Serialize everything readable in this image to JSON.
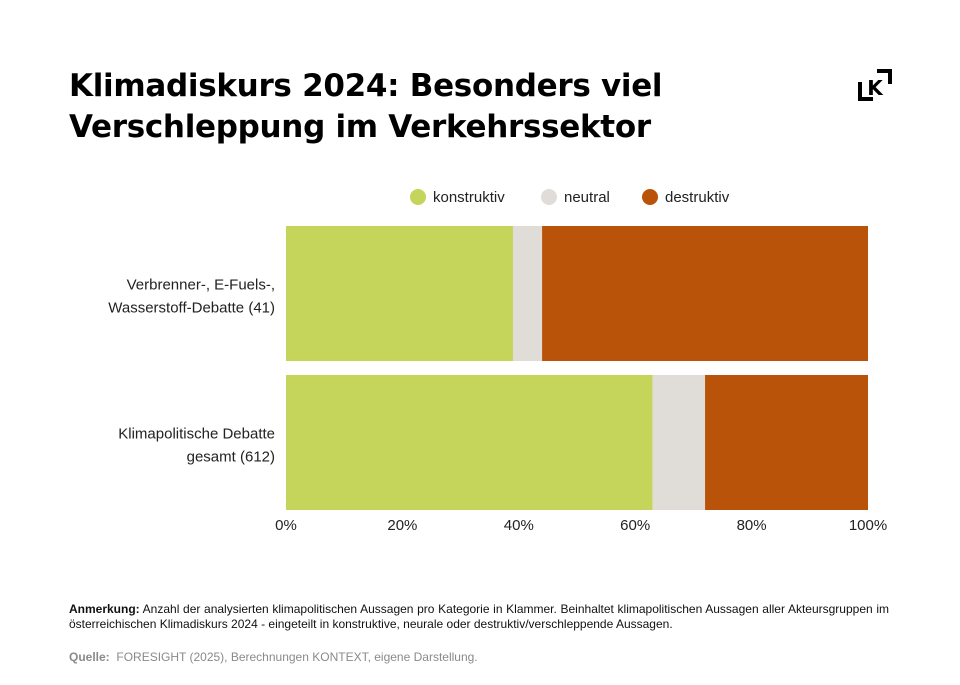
{
  "title_line1": "Klimadiskurs 2024: Besonders viel",
  "title_line2": "Verschleppung im Verkehrssektor",
  "logo_icon": "kontext-k-logo",
  "chart_data": {
    "type": "bar",
    "orientation": "horizontal-stacked-100",
    "categories": [
      [
        "Verbrenner-, E-Fuels-,",
        "Wasserstoff-Debatte (41)"
      ],
      [
        "Klimapolitische Debatte",
        "gesamt (612)"
      ]
    ],
    "series": [
      {
        "name": "konstruktiv",
        "color": "#c5d55c",
        "values": [
          39,
          63
        ]
      },
      {
        "name": "neutral",
        "color": "#e0ddd8",
        "values": [
          5,
          9
        ]
      },
      {
        "name": "destruktiv",
        "color": "#b9530a",
        "values": [
          56,
          28
        ]
      }
    ],
    "xlim": [
      0,
      100
    ],
    "xticks": [
      "0%",
      "20%",
      "40%",
      "60%",
      "80%",
      "100%"
    ],
    "legend_position": "top",
    "grid": false
  },
  "note_label": "Anmerkung:",
  "note_text": "Anzahl der analysierten klimapolitischen Aussagen pro Kategorie in Klammer. Beinhaltet klimapolitischen Aussagen aller Akteursgruppen im österreichischen Klimadiskurs 2024 - eingeteilt in konstruktive, neurale oder destruktiv/verschleppende Aussagen.",
  "source_label": "Quelle:",
  "source_text": "FORESIGHT (2025), Berechnungen KONTEXT, eigene Darstellung."
}
